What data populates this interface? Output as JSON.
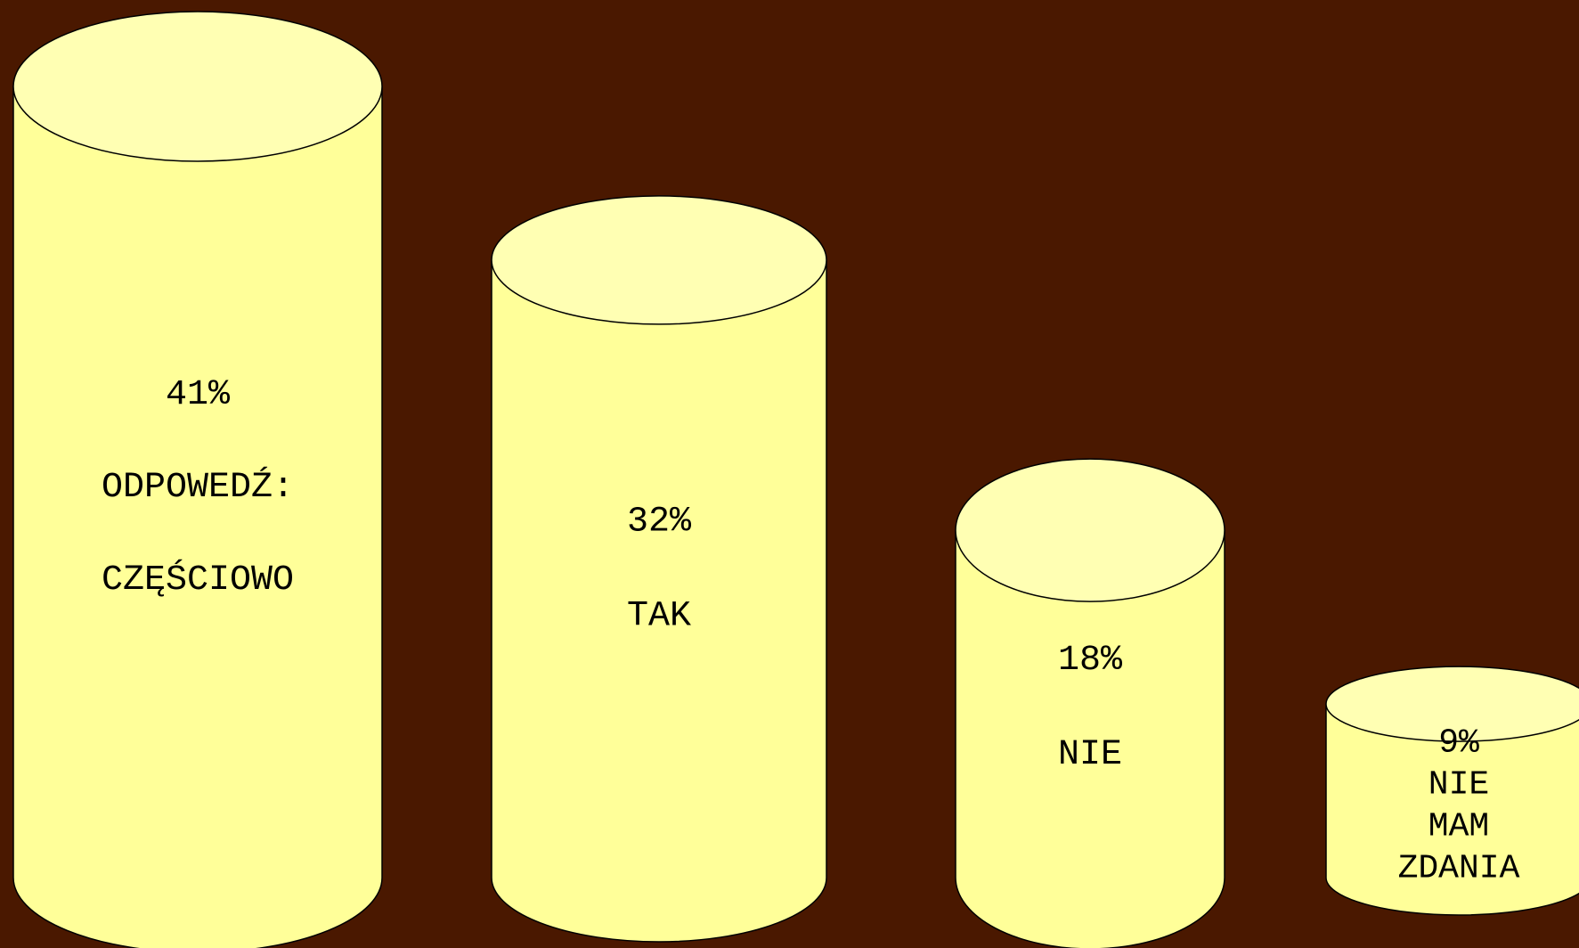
{
  "chart_data": {
    "type": "bar",
    "style": "3d-cylinder",
    "title": "",
    "xlabel": "",
    "ylabel": "",
    "categories": [
      "ODPOWEDŹ: CZĘŚCIOWO",
      "TAK",
      "NIE",
      "NIE MAM ZDANIA"
    ],
    "values": [
      41,
      32,
      18,
      9
    ],
    "grid": false,
    "legend": "none",
    "bars": [
      {
        "value": 41,
        "value_label": "41%",
        "label_lines": [
          "ODPOWEDŹ:",
          "CZĘŚCIOWO"
        ]
      },
      {
        "value": 32,
        "value_label": "32%",
        "label_lines": [
          "TAK"
        ]
      },
      {
        "value": 18,
        "value_label": "18%",
        "label_lines": [
          "NIE"
        ]
      },
      {
        "value": 9,
        "value_label": "9%",
        "label_lines": [
          "NIE",
          "MAM",
          "ZDANIA"
        ]
      }
    ]
  },
  "colors": {
    "background": "#4a1800",
    "cylinder_body": "#ffff99",
    "cylinder_top": "#ffffb3",
    "outline": "#000000"
  }
}
